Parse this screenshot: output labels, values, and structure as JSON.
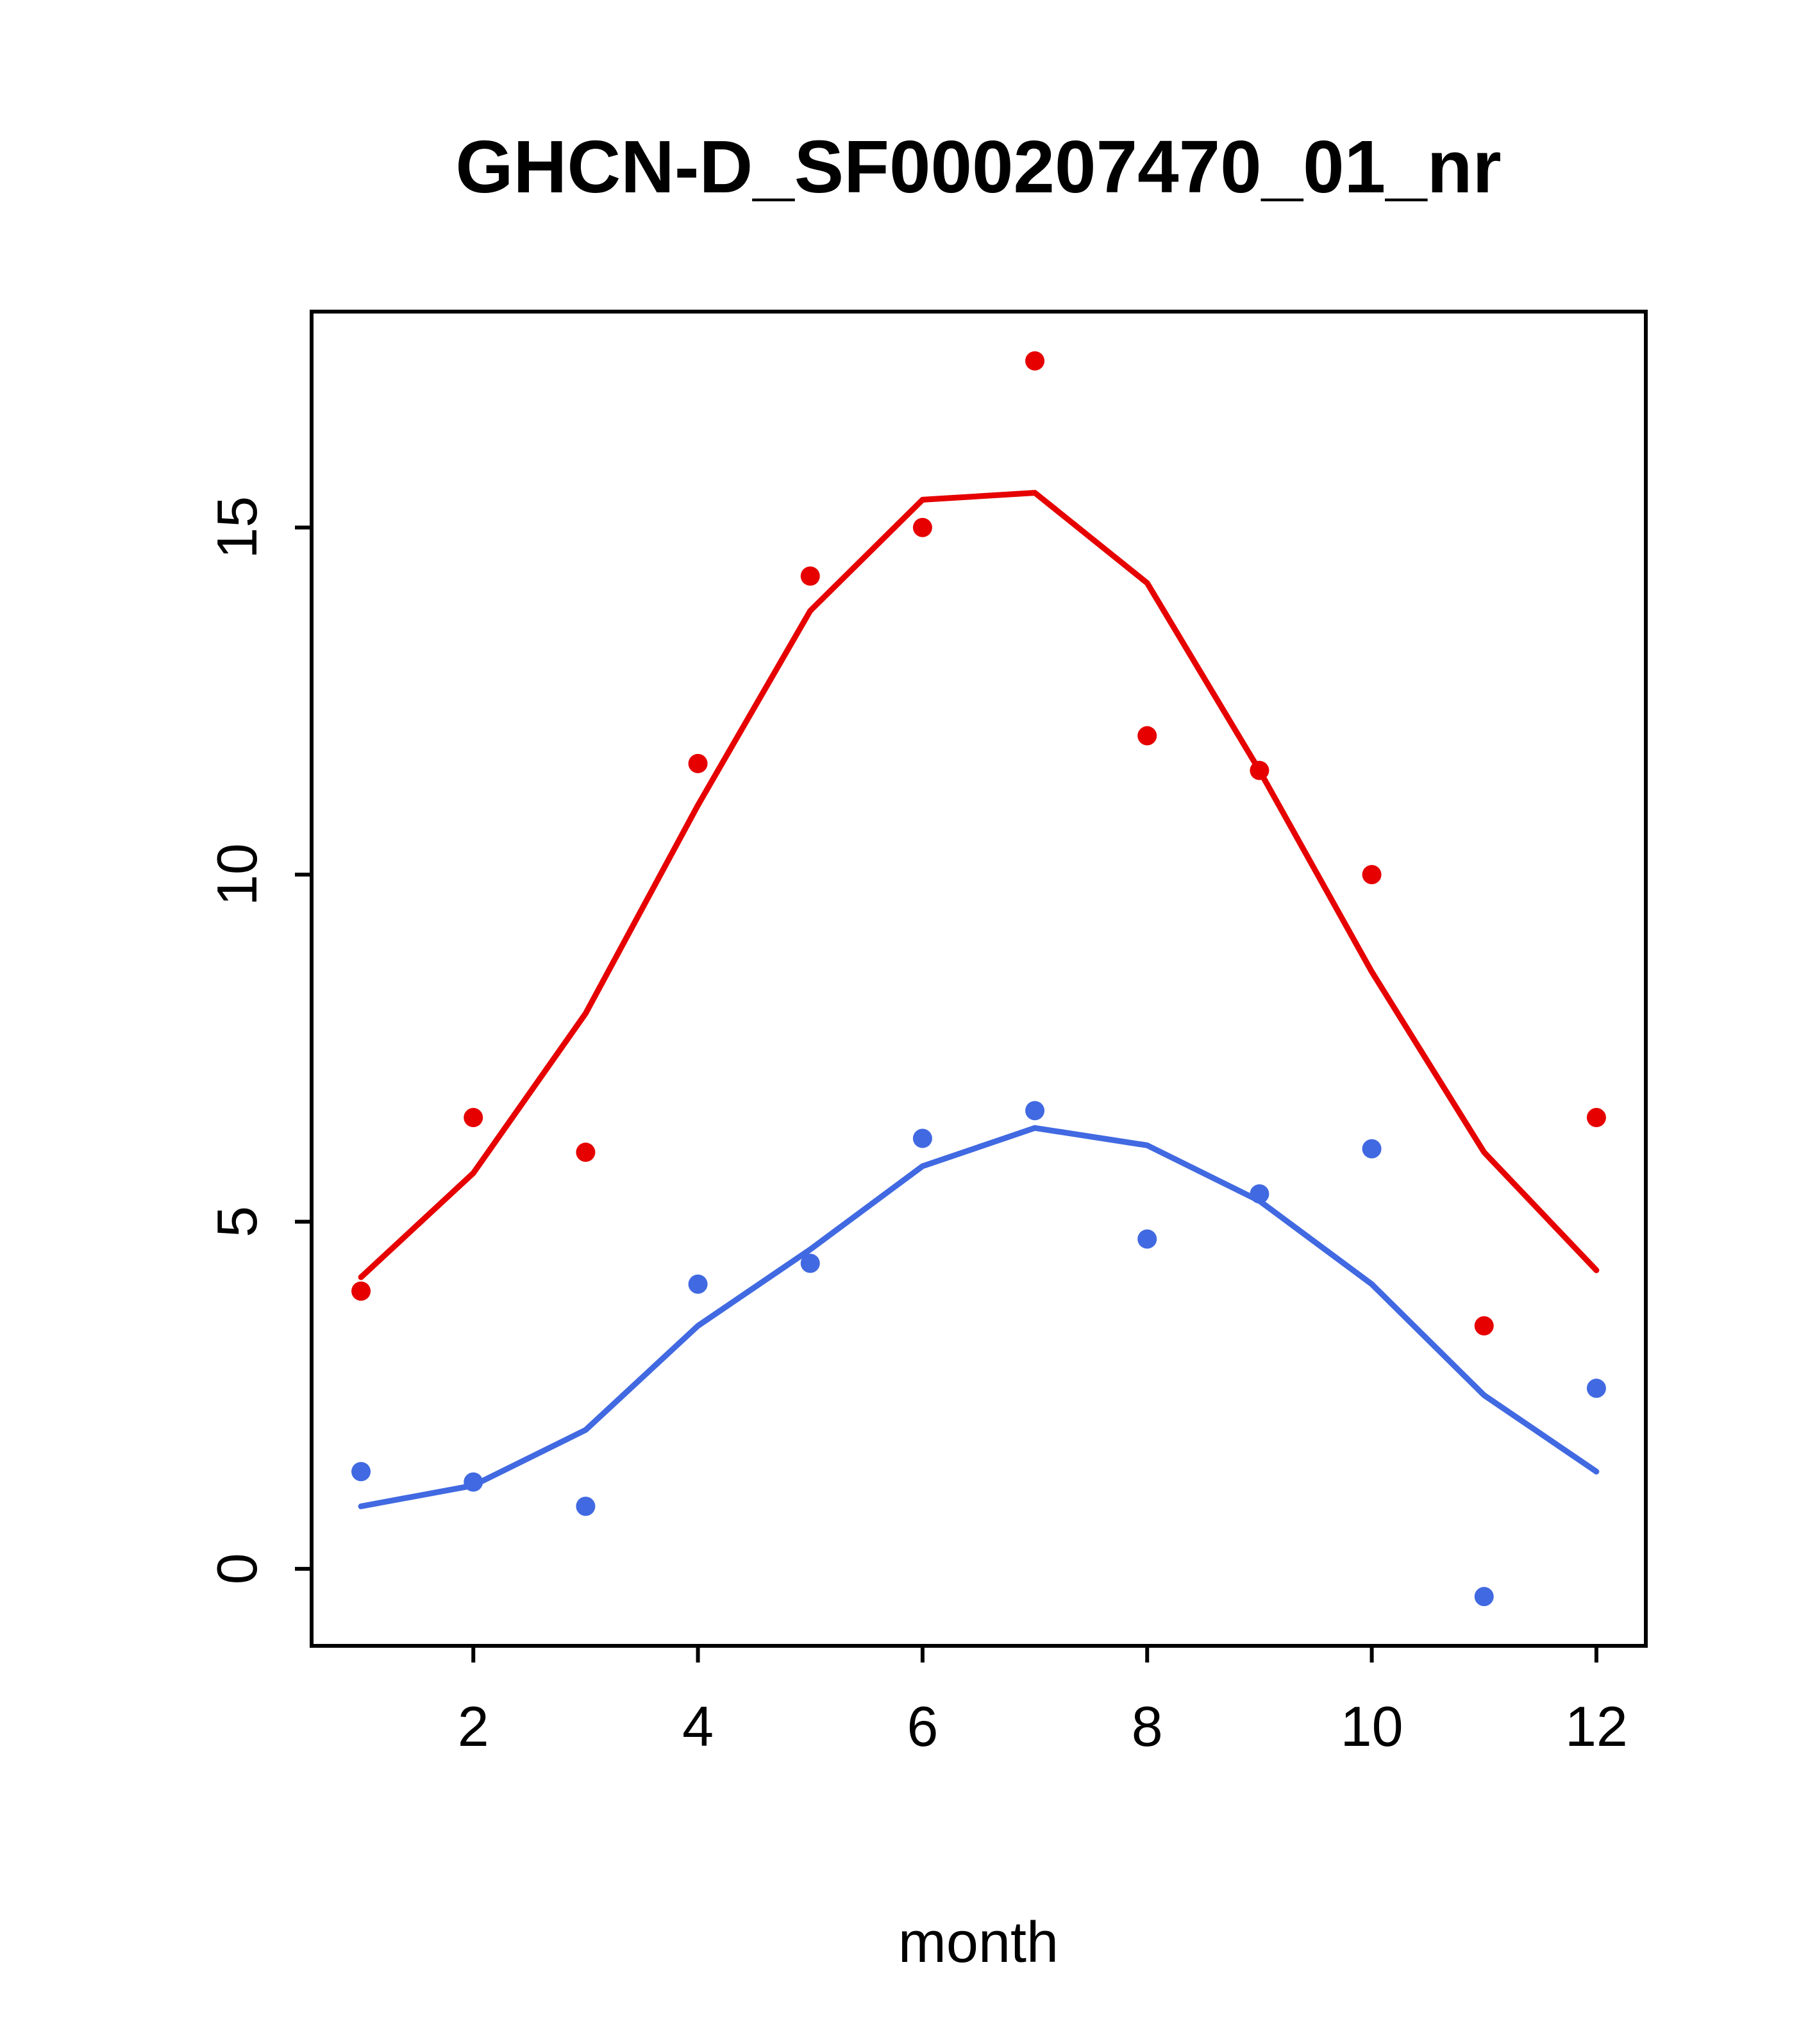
{
  "chart_data": {
    "type": "scatter",
    "title": "GHCN-D_SF000207470_01_nr",
    "xlabel": "month",
    "ylabel": "",
    "x": [
      1,
      2,
      3,
      4,
      5,
      6,
      7,
      8,
      9,
      10,
      11,
      12
    ],
    "xlim": [
      0.56,
      12.44
    ],
    "ylim": [
      -1.11,
      18.11
    ],
    "x_ticks": [
      2,
      4,
      6,
      8,
      10,
      12
    ],
    "y_ticks": [
      0,
      5,
      10,
      15
    ],
    "grid": false,
    "legend": false,
    "colors": {
      "red": "#e60000",
      "blue": "#4169e1",
      "axis": "#000000"
    },
    "series": [
      {
        "name": "red-points",
        "kind": "points",
        "color": "#e60000",
        "values": [
          4.0,
          6.5,
          6.0,
          11.6,
          14.3,
          15.0,
          17.4,
          12.0,
          11.5,
          10.0,
          3.5,
          6.5
        ]
      },
      {
        "name": "red-line",
        "kind": "line",
        "color": "#e60000",
        "values": [
          4.2,
          5.7,
          8.0,
          11.0,
          13.8,
          15.4,
          15.5,
          14.2,
          11.5,
          8.6,
          6.0,
          4.3
        ]
      },
      {
        "name": "blue-points",
        "kind": "points",
        "color": "#4169e1",
        "values": [
          1.4,
          1.25,
          0.9,
          4.1,
          4.4,
          6.2,
          6.6,
          4.75,
          5.4,
          6.05,
          -0.4,
          2.6
        ]
      },
      {
        "name": "blue-line",
        "kind": "line",
        "color": "#4169e1",
        "values": [
          0.9,
          1.2,
          2.0,
          3.5,
          4.6,
          5.8,
          6.35,
          6.1,
          5.3,
          4.1,
          2.5,
          1.4
        ]
      }
    ]
  }
}
